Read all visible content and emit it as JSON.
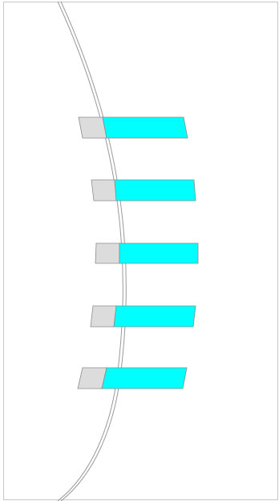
{
  "figure": {
    "description": "",
    "colors": {
      "background": "#ffffff",
      "frame": "#c8c8c8",
      "arc_stroke": "#9a9a9a",
      "inner_segment_fill": "#dcdcdc",
      "outer_segment_fill": "#00ffff",
      "segment_stroke": "#8c8c8c"
    },
    "bar_count": 5
  }
}
